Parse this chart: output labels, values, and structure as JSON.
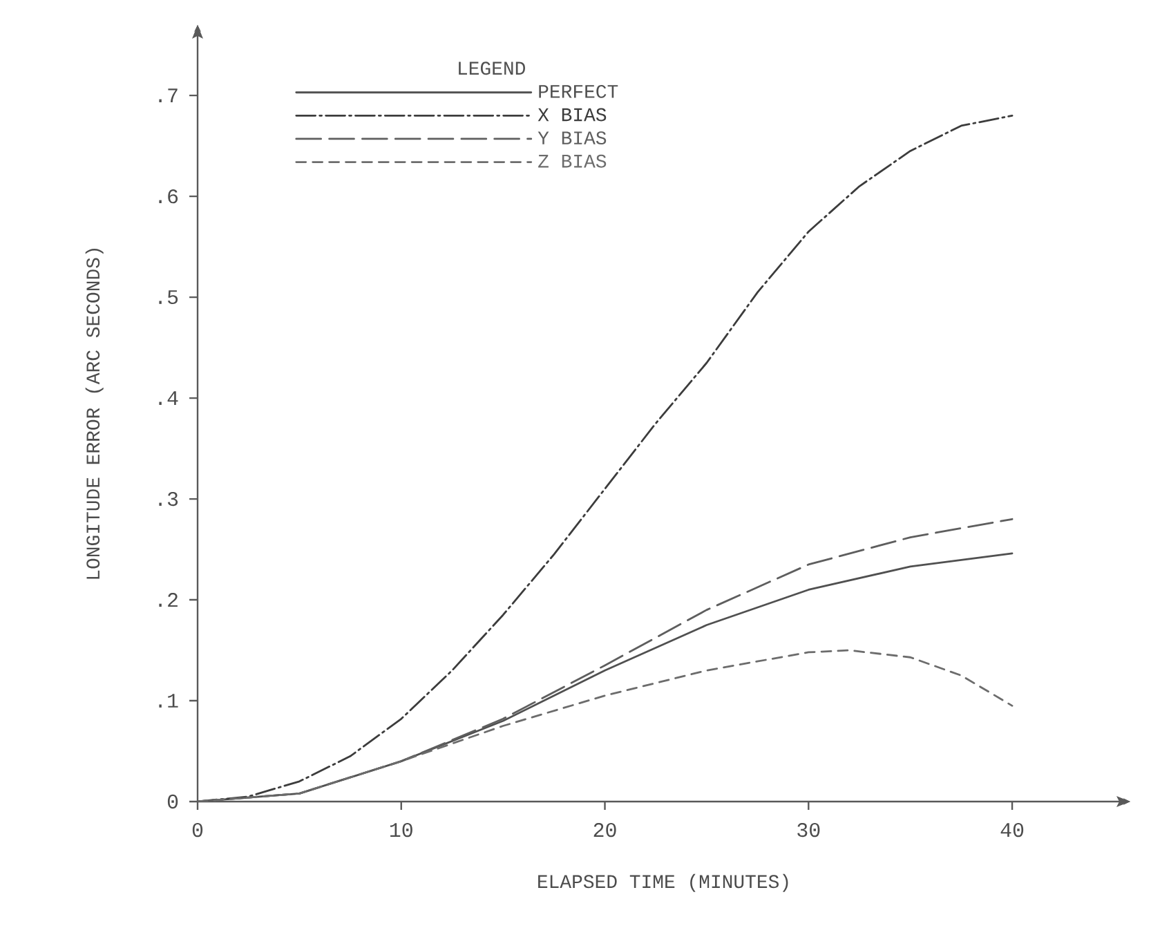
{
  "chart_data": {
    "type": "line",
    "xlabel": "ELAPSED TIME (MINUTES)",
    "ylabel": "LONGITUDE ERROR (ARC SECONDS)",
    "legend_title": "LEGEND",
    "legend": "top left",
    "xlim": [
      0,
      45.8
    ],
    "ylim": [
      0,
      0.77
    ],
    "xticks": [
      0,
      10,
      20,
      30,
      40
    ],
    "yticks": [
      0,
      {
        "value": 0.1,
        "label": ".1"
      },
      {
        "value": 0.2,
        "label": ".2"
      },
      {
        "value": 0.3,
        "label": ".3"
      },
      {
        "value": 0.4,
        "label": ".4"
      },
      {
        "value": 0.5,
        "label": ".5"
      },
      {
        "value": 0.6,
        "label": ".6"
      },
      {
        "value": 0.7,
        "label": ".7"
      }
    ],
    "grid": false,
    "series": [
      {
        "name": "PERFECT",
        "color": "#505050",
        "line_style": "solid",
        "x": [
          0,
          5,
          10,
          15,
          20,
          25,
          30,
          35,
          40
        ],
        "values": [
          0,
          0.008,
          0.04,
          0.08,
          0.13,
          0.175,
          0.21,
          0.233,
          0.246
        ]
      },
      {
        "name": "X BIAS",
        "color": "#3c3c3c",
        "line_style": "dashdot",
        "x": [
          0,
          2.5,
          5,
          7.5,
          10,
          12.5,
          15,
          17.5,
          20,
          22.5,
          25,
          27.5,
          30,
          32.5,
          35,
          37.5,
          40
        ],
        "values": [
          0,
          0.005,
          0.02,
          0.045,
          0.082,
          0.13,
          0.185,
          0.245,
          0.31,
          0.375,
          0.435,
          0.505,
          0.565,
          0.61,
          0.645,
          0.67,
          0.68
        ]
      },
      {
        "name": "Y BIAS",
        "color": "#5e5e5e",
        "line_style": "long dashed",
        "x": [
          0,
          5,
          10,
          15,
          20,
          25,
          30,
          35,
          40
        ],
        "values": [
          0,
          0.008,
          0.04,
          0.082,
          0.135,
          0.19,
          0.235,
          0.262,
          0.28
        ]
      },
      {
        "name": "Z BIAS",
        "color": "#6c6c6c",
        "line_style": "dashed",
        "x": [
          0,
          5,
          10,
          15,
          20,
          25,
          30,
          32,
          35,
          37.5,
          40
        ],
        "values": [
          0,
          0.008,
          0.04,
          0.075,
          0.105,
          0.13,
          0.148,
          0.15,
          0.143,
          0.125,
          0.095
        ]
      }
    ]
  }
}
